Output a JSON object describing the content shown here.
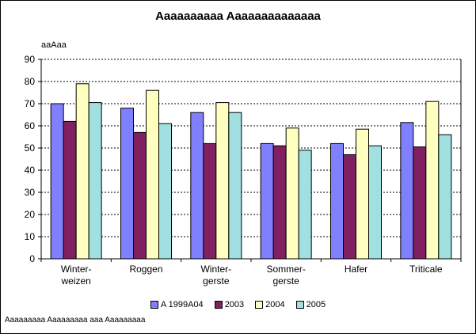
{
  "chart_data": {
    "type": "bar",
    "title": "Aaaaaaaaaa Aaaaaaaaaaaaaa",
    "ylabel": "aaAaa",
    "xlabel": "",
    "ylim": [
      0,
      90
    ],
    "yticks": [
      0,
      10,
      20,
      30,
      40,
      50,
      60,
      70,
      80,
      90
    ],
    "grid": true,
    "legend_position": "bottom",
    "categories": [
      [
        "Winter-",
        "weizen"
      ],
      [
        "Roggen"
      ],
      [
        "Winter-",
        "gerste"
      ],
      [
        "Sommer-",
        "gerste"
      ],
      [
        "Hafer"
      ],
      [
        "Triticale"
      ]
    ],
    "series": [
      {
        "name": "A 1999A04",
        "color": "#8080ff",
        "values": [
          70,
          68,
          66,
          52,
          52,
          61.5
        ]
      },
      {
        "name": "2003",
        "color": "#802060",
        "values": [
          62,
          57,
          52,
          51,
          47,
          50.5
        ]
      },
      {
        "name": "2004",
        "color": "#ffffc0",
        "values": [
          79,
          76,
          70.5,
          59,
          58.5,
          71
        ]
      },
      {
        "name": "2005",
        "color": "#a0e0e0",
        "values": [
          70.5,
          61,
          66,
          49,
          51,
          56
        ]
      }
    ]
  },
  "footnote": "Aaaaaaaaa Aaaaaaaaa aaa Aaaaaaaaa"
}
